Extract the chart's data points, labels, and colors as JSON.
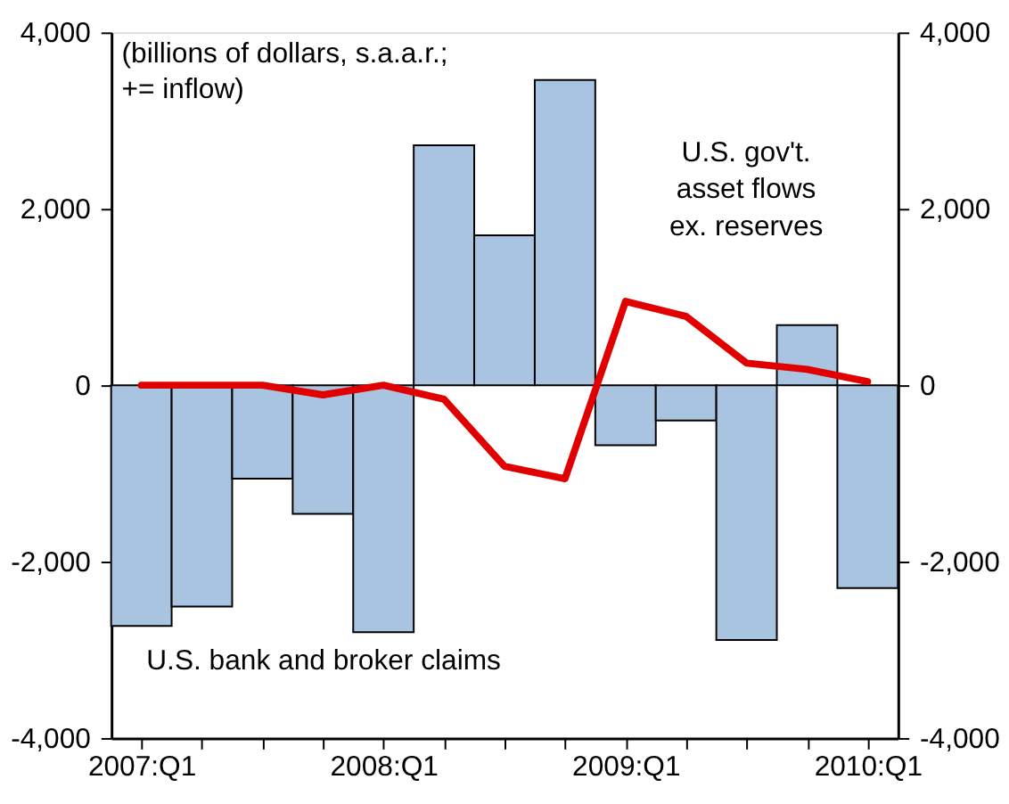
{
  "chart_data": {
    "type": "bar",
    "categories": [
      "2007:Q1",
      null,
      null,
      null,
      "2008:Q1",
      null,
      null,
      null,
      "2009:Q1",
      null,
      null,
      null,
      "2010:Q1"
    ],
    "series": [
      {
        "name": "U.S. bank and broker claims",
        "color": "#a9c4e0",
        "values": [
          -2730,
          -2510,
          -1060,
          -1460,
          -2800,
          2720,
          1700,
          3460,
          -680,
          -400,
          -2890,
          680,
          -2300
        ]
      },
      {
        "name": "U.S. gov't.\nasset flows\nex. reserves",
        "type": "line",
        "color": "#e00000",
        "values": [
          0,
          0,
          0,
          -110,
          0,
          -160,
          -920,
          -1060,
          950,
          780,
          250,
          180,
          40
        ]
      }
    ],
    "ylim": [
      -4000,
      4000
    ],
    "yticks": [
      {
        "value": -4000,
        "label": "-4,000"
      },
      {
        "value": -2000,
        "label": "-2,000"
      },
      0,
      {
        "value": 2000,
        "label": "2,000"
      },
      {
        "value": 4000,
        "label": "4,000"
      }
    ],
    "y2lim": [
      -4000,
      4000
    ],
    "y2ticks": [
      {
        "value": -4000,
        "label": "-4,000"
      },
      {
        "value": -2000,
        "label": "-2,000"
      },
      0,
      {
        "value": 2000,
        "label": "2,000"
      },
      {
        "value": 4000,
        "label": "4,000"
      }
    ],
    "annotations": [
      "(billions of dollars, s.a.a.r.;\n+= inflow)"
    ],
    "grid": false
  }
}
